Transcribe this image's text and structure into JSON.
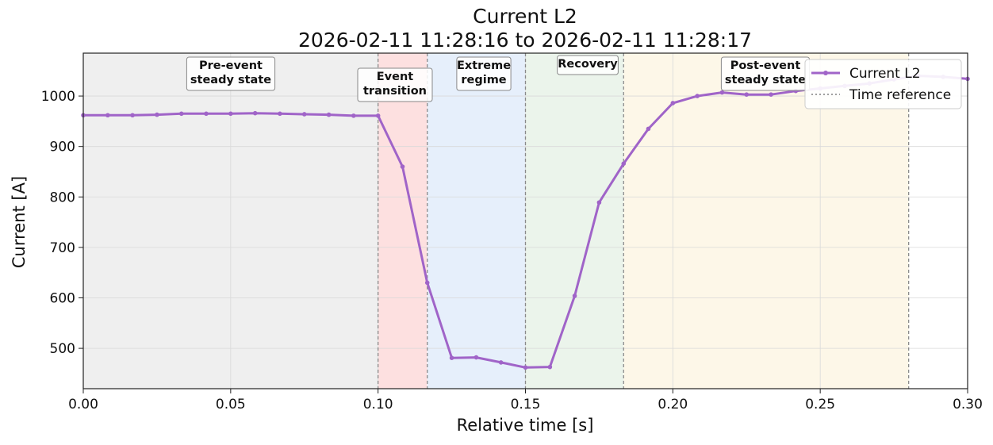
{
  "chart_data": {
    "type": "line",
    "title": "Current L2",
    "subtitle": "2026-02-11 11:28:16 to 2026-02-11 11:28:17",
    "xlabel": "Relative time [s]",
    "ylabel": "Current [A]",
    "xlim": [
      0.0,
      0.3
    ],
    "ylim": [
      420,
      1085
    ],
    "xticks": [
      0.0,
      0.05,
      0.1,
      0.15,
      0.2,
      0.25,
      0.3
    ],
    "xtick_labels": [
      "0.00",
      "0.05",
      "0.10",
      "0.15",
      "0.20",
      "0.25",
      "0.30"
    ],
    "yticks": [
      500,
      600,
      700,
      800,
      900,
      1000
    ],
    "ytick_labels": [
      "500",
      "600",
      "700",
      "800",
      "900",
      "1000"
    ],
    "grid": true,
    "legend_position": "top-right",
    "series": [
      {
        "name": "Current L2",
        "color": "#a064c8",
        "x": [
          0.0,
          0.0083,
          0.0167,
          0.025,
          0.0333,
          0.0417,
          0.05,
          0.0583,
          0.0667,
          0.075,
          0.0833,
          0.0917,
          0.1,
          0.1083,
          0.1167,
          0.125,
          0.1333,
          0.1417,
          0.15,
          0.1583,
          0.1667,
          0.175,
          0.1833,
          0.1917,
          0.2,
          0.2083,
          0.2167,
          0.225,
          0.2333,
          0.2417,
          0.25,
          0.2583,
          0.2667,
          0.275,
          0.2833,
          0.2917,
          0.3
        ],
        "y": [
          962,
          962,
          962,
          963,
          965,
          965,
          965,
          966,
          965,
          964,
          963,
          961,
          961,
          860,
          630,
          481,
          482,
          472,
          462,
          463,
          604,
          789,
          866,
          935,
          986,
          1000,
          1007,
          1003,
          1003,
          1010,
          1015,
          1020,
          1025,
          1033,
          1040,
          1038,
          1034
        ]
      }
    ],
    "regions": [
      {
        "label": "Pre-event\nsteady state",
        "x0": 0.0,
        "x1": 0.1,
        "color": "#efefef"
      },
      {
        "label": "Event\ntransition",
        "x0": 0.1,
        "x1": 0.1167,
        "color": "#fde0e0"
      },
      {
        "label": "Extreme\nregime",
        "x0": 0.1167,
        "x1": 0.15,
        "color": "#e6effb"
      },
      {
        "label": "Recovery",
        "x0": 0.15,
        "x1": 0.1833,
        "color": "#ebf4eb"
      },
      {
        "label": "Post-event\nsteady state",
        "x0": 0.1833,
        "x1": 0.28,
        "color": "#fdf7e8"
      }
    ],
    "reference_lines": [
      0.1,
      0.1167,
      0.15,
      0.1833,
      0.28
    ],
    "legend": [
      {
        "label": "Current L2",
        "style": "line-marker",
        "color": "#a064c8"
      },
      {
        "label": "Time reference",
        "style": "dotted",
        "color": "#808080"
      }
    ]
  }
}
